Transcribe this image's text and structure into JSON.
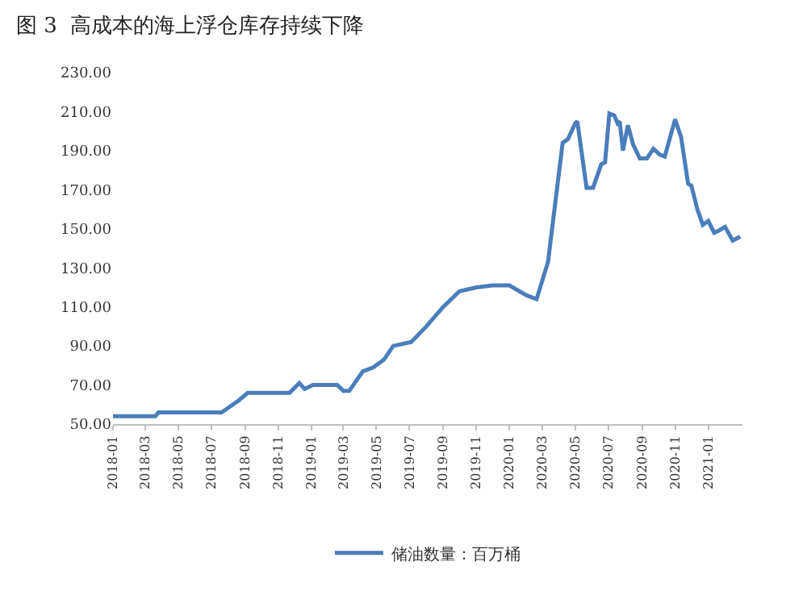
{
  "chart_data": {
    "type": "line",
    "title": "图 3  高成本的海上浮仓库存持续下降",
    "series": [
      {
        "name": "储油数量：百万桶",
        "color": "#4a7ebb",
        "x": [
          "2018-01-01",
          "2018-03-20",
          "2018-03-26",
          "2018-07-20",
          "2018-08-20",
          "2018-09-06",
          "2018-11-22",
          "2018-12-10",
          "2018-12-20",
          "2019-01-04",
          "2019-02-18",
          "2019-03-01",
          "2019-03-12",
          "2019-04-06",
          "2019-04-25",
          "2019-05-15",
          "2019-06-01",
          "2019-07-04",
          "2019-08-01",
          "2019-09-01",
          "2019-10-01",
          "2019-11-01",
          "2019-12-01",
          "2020-01-01",
          "2020-02-01",
          "2020-02-20",
          "2020-03-12",
          "2020-04-08",
          "2020-04-18",
          "2020-05-01",
          "2020-05-05",
          "2020-05-22",
          "2020-06-03",
          "2020-06-18",
          "2020-06-25",
          "2020-07-03",
          "2020-07-12",
          "2020-07-18",
          "2020-07-22",
          "2020-07-28",
          "2020-08-06",
          "2020-08-16",
          "2020-08-28",
          "2020-09-10",
          "2020-09-22",
          "2020-10-04",
          "2020-10-13",
          "2020-10-22",
          "2020-11-01",
          "2020-11-12",
          "2020-11-25",
          "2020-12-01",
          "2020-12-12",
          "2020-12-22",
          "2021-01-01",
          "2021-01-12",
          "2021-01-20",
          "2021-02-01",
          "2021-02-15",
          "2021-03-01"
        ],
        "values": [
          54,
          54,
          56,
          56,
          62,
          66,
          66,
          71,
          68,
          70,
          70,
          67,
          67,
          77,
          79,
          83,
          90,
          92,
          100,
          110,
          118,
          120,
          121,
          121,
          116,
          114,
          133,
          194,
          196,
          204,
          205,
          171,
          171,
          183,
          184,
          209,
          208,
          204,
          205,
          190,
          203,
          193,
          186,
          186,
          191,
          188,
          187,
          196,
          206,
          197,
          173,
          172,
          160,
          152,
          154,
          148,
          149,
          151,
          144,
          146
        ]
      }
    ],
    "xlim": [
      "2018-01-01",
      "2021-03-05"
    ],
    "xticks": [
      "2018-01",
      "2018-03",
      "2018-05",
      "2018-07",
      "2018-09",
      "2018-11",
      "2019-01",
      "2019-03",
      "2019-05",
      "2019-07",
      "2019-09",
      "2019-11",
      "2020-01",
      "2020-03",
      "2020-05",
      "2020-07",
      "2020-09",
      "2020-11",
      "2021-01"
    ],
    "ylim": [
      50,
      230
    ],
    "yticks": [
      {
        "value": 50,
        "label": "50.00"
      },
      {
        "value": 70,
        "label": "70.00"
      },
      {
        "value": 90,
        "label": "90.00"
      },
      {
        "value": 110,
        "label": "110.00"
      },
      {
        "value": 130,
        "label": "130.00"
      },
      {
        "value": 150,
        "label": "150.00"
      },
      {
        "value": 170,
        "label": "170.00"
      },
      {
        "value": 190,
        "label": "190.00"
      },
      {
        "value": 210,
        "label": "210.00"
      },
      {
        "value": 230,
        "label": "230.00"
      }
    ],
    "legend": "bottom",
    "marker": "none",
    "line_style": "solid"
  }
}
